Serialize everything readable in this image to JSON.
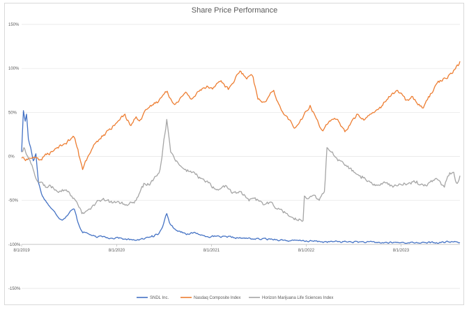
{
  "chart_data": {
    "type": "line",
    "title": "Share Price Performance",
    "xlabel": "",
    "ylabel": "",
    "y_unit": "percent",
    "ylim": [
      -150,
      150
    ],
    "y_ticks": [
      150,
      100,
      50,
      0,
      -50,
      -100,
      -150
    ],
    "y_tick_labels": [
      "150%",
      "100%",
      "50%",
      "0%",
      "-50%",
      "-100%",
      "-150%"
    ],
    "x_range": [
      "2019-08-01",
      "2024-03-15"
    ],
    "x_ticks": [
      "2019-08-01",
      "2020-08-01",
      "2021-08-01",
      "2022-08-01",
      "2023-08-01"
    ],
    "x_tick_labels": [
      "8/1/2019",
      "8/1/2020",
      "8/1/2021",
      "8/1/2022",
      "8/1/2023"
    ],
    "x_axis_crosses_at": -100,
    "grid": "horizontal",
    "legend_position": "bottom",
    "series": [
      {
        "name": "SNDL Inc.",
        "color": "#4472c4",
        "points": [
          [
            "2019-08-01",
            5
          ],
          [
            "2019-08-08",
            52
          ],
          [
            "2019-08-15",
            40
          ],
          [
            "2019-08-20",
            48
          ],
          [
            "2019-08-27",
            20
          ],
          [
            "2019-09-05",
            10
          ],
          [
            "2019-09-15",
            -5
          ],
          [
            "2019-09-25",
            3
          ],
          [
            "2019-10-05",
            -30
          ],
          [
            "2019-10-20",
            -45
          ],
          [
            "2019-11-01",
            -50
          ],
          [
            "2019-11-20",
            -58
          ],
          [
            "2019-12-10",
            -65
          ],
          [
            "2020-01-01",
            -72
          ],
          [
            "2020-01-20",
            -68
          ],
          [
            "2020-02-05",
            -62
          ],
          [
            "2020-02-20",
            -60
          ],
          [
            "2020-03-05",
            -75
          ],
          [
            "2020-03-20",
            -85
          ],
          [
            "2020-04-15",
            -88
          ],
          [
            "2020-05-15",
            -92
          ],
          [
            "2020-06-15",
            -91
          ],
          [
            "2020-07-15",
            -93
          ],
          [
            "2020-08-01",
            -92
          ],
          [
            "2020-09-01",
            -94
          ],
          [
            "2020-10-01",
            -95
          ],
          [
            "2020-11-15",
            -94
          ],
          [
            "2020-12-15",
            -90
          ],
          [
            "2021-01-10",
            -88
          ],
          [
            "2021-01-25",
            -80
          ],
          [
            "2021-02-10",
            -65
          ],
          [
            "2021-02-20",
            -75
          ],
          [
            "2021-03-10",
            -82
          ],
          [
            "2021-04-01",
            -85
          ],
          [
            "2021-05-01",
            -88
          ],
          [
            "2021-06-01",
            -87
          ],
          [
            "2021-07-01",
            -90
          ],
          [
            "2021-08-01",
            -91
          ],
          [
            "2021-10-01",
            -92
          ],
          [
            "2021-12-01",
            -93
          ],
          [
            "2022-02-01",
            -94
          ],
          [
            "2022-04-01",
            -94
          ],
          [
            "2022-06-01",
            -96
          ],
          [
            "2022-08-01",
            -96
          ],
          [
            "2022-10-01",
            -97
          ],
          [
            "2022-12-01",
            -97
          ],
          [
            "2023-02-01",
            -97
          ],
          [
            "2023-05-01",
            -98
          ],
          [
            "2023-08-01",
            -98
          ],
          [
            "2023-11-01",
            -98
          ],
          [
            "2024-01-01",
            -98
          ],
          [
            "2024-02-15",
            -97
          ],
          [
            "2024-03-15",
            -98
          ]
        ]
      },
      {
        "name": "Nasdaq Composite Index",
        "color": "#ed7d31",
        "points": [
          [
            "2019-08-01",
            -2
          ],
          [
            "2019-08-20",
            -3
          ],
          [
            "2019-09-15",
            -1
          ],
          [
            "2019-10-10",
            -4
          ],
          [
            "2019-11-05",
            2
          ],
          [
            "2019-12-01",
            6
          ],
          [
            "2020-01-01",
            12
          ],
          [
            "2020-02-01",
            18
          ],
          [
            "2020-02-19",
            22
          ],
          [
            "2020-03-05",
            8
          ],
          [
            "2020-03-23",
            -15
          ],
          [
            "2020-04-10",
            -2
          ],
          [
            "2020-05-01",
            10
          ],
          [
            "2020-06-01",
            20
          ],
          [
            "2020-07-01",
            30
          ],
          [
            "2020-08-01",
            38
          ],
          [
            "2020-09-02",
            48
          ],
          [
            "2020-09-25",
            35
          ],
          [
            "2020-10-15",
            45
          ],
          [
            "2020-11-01",
            42
          ],
          [
            "2020-12-01",
            55
          ],
          [
            "2021-01-01",
            62
          ],
          [
            "2021-02-12",
            74
          ],
          [
            "2021-03-08",
            60
          ],
          [
            "2021-04-28",
            72
          ],
          [
            "2021-05-15",
            65
          ],
          [
            "2021-06-15",
            74
          ],
          [
            "2021-07-15",
            80
          ],
          [
            "2021-08-01",
            78
          ],
          [
            "2021-09-07",
            86
          ],
          [
            "2021-10-05",
            76
          ],
          [
            "2021-11-19",
            97
          ],
          [
            "2021-12-15",
            88
          ],
          [
            "2022-01-05",
            92
          ],
          [
            "2022-01-27",
            65
          ],
          [
            "2022-02-24",
            62
          ],
          [
            "2022-03-29",
            75
          ],
          [
            "2022-04-28",
            52
          ],
          [
            "2022-05-20",
            45
          ],
          [
            "2022-06-16",
            32
          ],
          [
            "2022-07-15",
            42
          ],
          [
            "2022-08-16",
            58
          ],
          [
            "2022-09-30",
            30
          ],
          [
            "2022-10-25",
            38
          ],
          [
            "2022-11-30",
            42
          ],
          [
            "2022-12-28",
            28
          ],
          [
            "2023-01-20",
            38
          ],
          [
            "2023-02-15",
            48
          ],
          [
            "2023-03-15",
            42
          ],
          [
            "2023-04-15",
            50
          ],
          [
            "2023-05-15",
            55
          ],
          [
            "2023-06-15",
            68
          ],
          [
            "2023-07-19",
            75
          ],
          [
            "2023-08-18",
            64
          ],
          [
            "2023-09-15",
            68
          ],
          [
            "2023-10-26",
            55
          ],
          [
            "2023-11-15",
            68
          ],
          [
            "2023-12-15",
            82
          ],
          [
            "2024-01-10",
            88
          ],
          [
            "2024-01-31",
            92
          ],
          [
            "2024-02-20",
            98
          ],
          [
            "2024-03-05",
            104
          ],
          [
            "2024-03-15",
            108
          ]
        ]
      },
      {
        "name": "Horizon Marijuana Life Sciences Index",
        "color": "#a5a5a5",
        "points": [
          [
            "2019-08-01",
            5
          ],
          [
            "2019-08-10",
            10
          ],
          [
            "2019-08-20",
            2
          ],
          [
            "2019-09-10",
            -10
          ],
          [
            "2019-09-25",
            -25
          ],
          [
            "2019-10-10",
            -30
          ],
          [
            "2019-11-01",
            -35
          ],
          [
            "2019-11-20",
            -33
          ],
          [
            "2019-12-10",
            -38
          ],
          [
            "2020-01-01",
            -40
          ],
          [
            "2020-01-20",
            -38
          ],
          [
            "2020-02-10",
            -45
          ],
          [
            "2020-03-05",
            -55
          ],
          [
            "2020-03-20",
            -65
          ],
          [
            "2020-04-15",
            -60
          ],
          [
            "2020-05-15",
            -52
          ],
          [
            "2020-06-15",
            -50
          ],
          [
            "2020-07-15",
            -53
          ],
          [
            "2020-08-01",
            -52
          ],
          [
            "2020-09-15",
            -55
          ],
          [
            "2020-10-15",
            -50
          ],
          [
            "2020-11-10",
            -35
          ],
          [
            "2020-12-10",
            -30
          ],
          [
            "2021-01-15",
            -15
          ],
          [
            "2021-02-10",
            42
          ],
          [
            "2021-02-25",
            5
          ],
          [
            "2021-03-20",
            -5
          ],
          [
            "2021-04-20",
            -15
          ],
          [
            "2021-05-20",
            -18
          ],
          [
            "2021-06-20",
            -25
          ],
          [
            "2021-07-20",
            -30
          ],
          [
            "2021-08-20",
            -38
          ],
          [
            "2021-09-20",
            -35
          ],
          [
            "2021-10-20",
            -42
          ],
          [
            "2021-11-20",
            -40
          ],
          [
            "2021-12-20",
            -48
          ],
          [
            "2022-01-20",
            -50
          ],
          [
            "2022-02-20",
            -55
          ],
          [
            "2022-03-20",
            -52
          ],
          [
            "2022-04-20",
            -60
          ],
          [
            "2022-05-20",
            -65
          ],
          [
            "2022-06-20",
            -70
          ],
          [
            "2022-07-20",
            -73
          ],
          [
            "2022-07-25",
            -45
          ],
          [
            "2022-08-10",
            -48
          ],
          [
            "2022-09-01",
            -44
          ],
          [
            "2022-09-20",
            -50
          ],
          [
            "2022-10-10",
            -40
          ],
          [
            "2022-10-20",
            10
          ],
          [
            "2022-11-10",
            5
          ],
          [
            "2022-12-01",
            -5
          ],
          [
            "2023-01-01",
            -10
          ],
          [
            "2023-02-01",
            -18
          ],
          [
            "2023-03-01",
            -25
          ],
          [
            "2023-04-01",
            -28
          ],
          [
            "2023-05-01",
            -33
          ],
          [
            "2023-06-01",
            -30
          ],
          [
            "2023-07-01",
            -35
          ],
          [
            "2023-08-01",
            -32
          ],
          [
            "2023-09-01",
            -30
          ],
          [
            "2023-10-01",
            -28
          ],
          [
            "2023-11-01",
            -32
          ],
          [
            "2023-12-15",
            -25
          ],
          [
            "2024-01-15",
            -35
          ],
          [
            "2024-02-01",
            -22
          ],
          [
            "2024-02-20",
            -18
          ],
          [
            "2024-03-01",
            -30
          ],
          [
            "2024-03-15",
            -22
          ]
        ]
      }
    ]
  }
}
